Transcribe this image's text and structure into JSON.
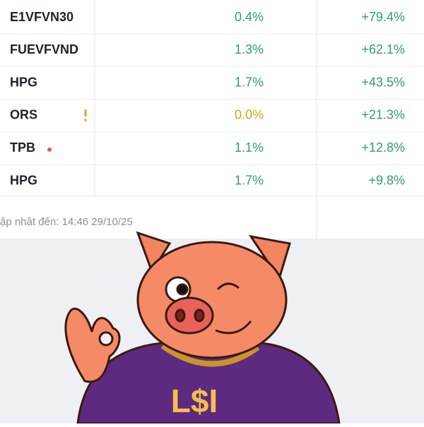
{
  "table": {
    "rows": [
      {
        "ticker": "E1VFVN30",
        "weight": "0.4%",
        "return": "+79.4%",
        "weight_color": "#2e9e6b"
      },
      {
        "ticker": "FUEVFVND",
        "weight": "1.3%",
        "return": "+62.1%",
        "weight_color": "#2e9e6b"
      },
      {
        "ticker": "HPG",
        "weight": "1.7%",
        "return": "+43.5%",
        "weight_color": "#2e9e6b"
      },
      {
        "ticker": "ORS",
        "weight": "0.0%",
        "return": "+21.3%",
        "weight_color": "#d4a21c"
      },
      {
        "ticker": "TPB",
        "weight": "1.1%",
        "return": "+12.8%",
        "weight_color": "#2e9e6b"
      },
      {
        "ticker": "HPG",
        "weight": "1.7%",
        "return": "+9.8%",
        "weight_color": "#2e9e6b"
      }
    ],
    "return_color": "#2e9e6b"
  },
  "footer": {
    "updated": "ập nhật đến: 14:46 29/10/25"
  },
  "illustration": {
    "shirt_text": "L$I"
  }
}
